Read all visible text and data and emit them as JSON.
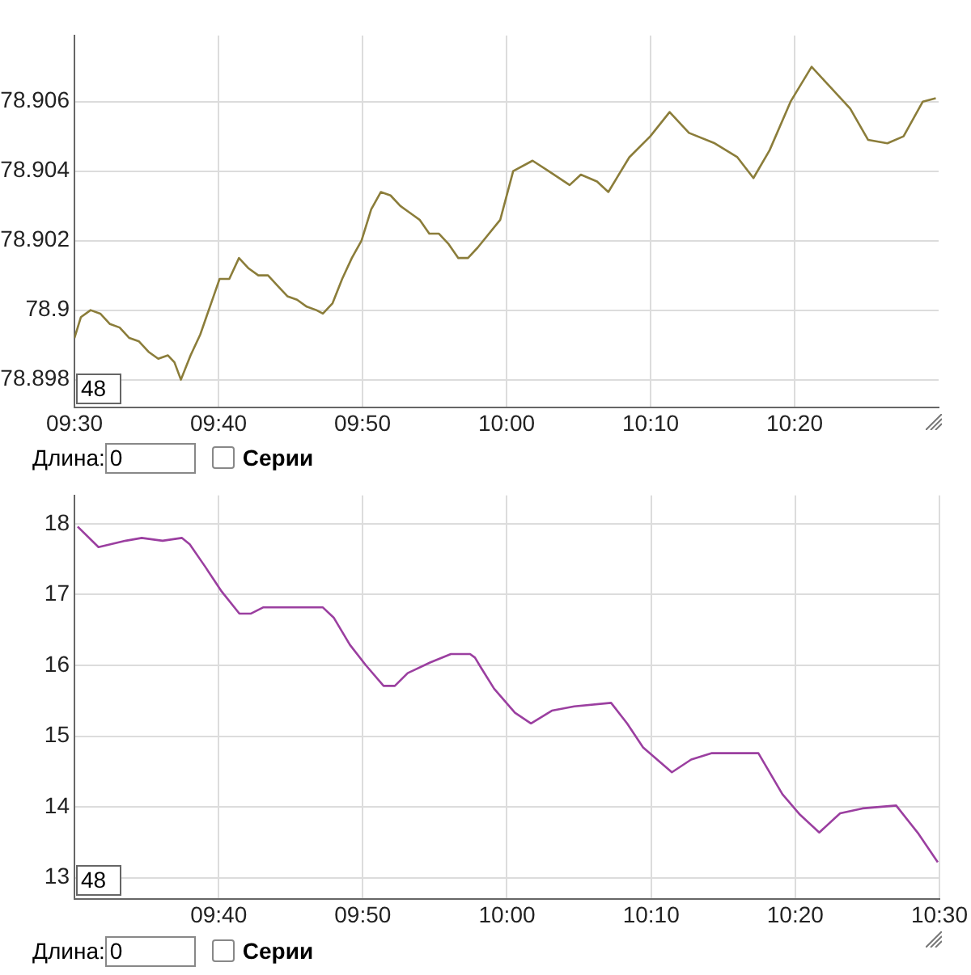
{
  "chart_data": [
    {
      "type": "line",
      "xlim": [
        9.5,
        10.5
      ],
      "ylim": [
        78.8972,
        78.9079
      ],
      "xticks": [
        {
          "value": 9.5,
          "label": "09:30"
        },
        {
          "value": 9.6667,
          "label": "09:40"
        },
        {
          "value": 9.8333,
          "label": "09:50"
        },
        {
          "value": 10,
          "label": "10:00"
        },
        {
          "value": 10.1667,
          "label": "10:10"
        },
        {
          "value": 10.3333,
          "label": "10:20"
        }
      ],
      "yticks": [
        78.898,
        78.9,
        78.902,
        78.904,
        78.906
      ],
      "grid": true,
      "legend": false,
      "marker": "none",
      "line_style": "solid",
      "annotations": [
        "48",
        "Длина:",
        "0",
        "Серии"
      ],
      "series": [
        {
          "color": "#8b7d3a",
          "x": [
            9.5,
            9.5075,
            9.5187,
            9.5299,
            9.5411,
            9.5523,
            9.5635,
            9.5747,
            9.5858,
            9.597,
            9.6082,
            9.6157,
            9.6232,
            9.6344,
            9.6456,
            9.6568,
            9.668,
            9.6792,
            9.6904,
            9.7016,
            9.7128,
            9.724,
            9.7352,
            9.7464,
            9.7576,
            9.7688,
            9.78,
            9.7875,
            9.7987,
            9.8098,
            9.821,
            9.8322,
            9.8434,
            9.8546,
            9.8658,
            9.877,
            9.8882,
            9.8994,
            9.9106,
            9.9218,
            9.933,
            9.9442,
            9.9554,
            9.9666,
            9.9927,
            10.0077,
            10.0301,
            10.0487,
            10.073,
            10.086,
            10.1047,
            10.1178,
            10.1421,
            10.1663,
            10.1887,
            10.2111,
            10.241,
            10.2671,
            10.2857,
            10.3044,
            10.3287,
            10.353,
            10.3716,
            10.3977,
            10.4183,
            10.4407,
            10.4594,
            10.4817,
            10.4967
          ],
          "values": [
            78.8992,
            78.8998,
            78.9,
            78.8999,
            78.8996,
            78.8995,
            78.8992,
            78.8991,
            78.8988,
            78.8986,
            78.8987,
            78.8985,
            78.898,
            78.8987,
            78.8993,
            78.9001,
            78.9009,
            78.9009,
            78.9015,
            78.9012,
            78.901,
            78.901,
            78.9007,
            78.9004,
            78.9003,
            78.9001,
            78.9,
            78.8999,
            78.9002,
            78.9009,
            78.9015,
            78.902,
            78.9029,
            78.9034,
            78.9033,
            78.903,
            78.9028,
            78.9026,
            78.9022,
            78.9022,
            78.9019,
            78.9015,
            78.9015,
            78.9018,
            78.9026,
            78.904,
            78.9043,
            78.904,
            78.9036,
            78.9039,
            78.9037,
            78.9034,
            78.9044,
            78.905,
            78.9057,
            78.9051,
            78.9048,
            78.9044,
            78.9038,
            78.9046,
            78.906,
            78.907,
            78.9065,
            78.9058,
            78.9049,
            78.9048,
            78.905,
            78.906,
            78.9061
          ]
        }
      ]
    },
    {
      "type": "line",
      "xlim": [
        9.5,
        10.5
      ],
      "ylim": [
        12.7,
        18.4
      ],
      "xticks": [
        {
          "value": 9.6667,
          "label": "09:40"
        },
        {
          "value": 9.8333,
          "label": "09:50"
        },
        {
          "value": 10,
          "label": "10:00"
        },
        {
          "value": 10.1667,
          "label": "10:10"
        },
        {
          "value": 10.3333,
          "label": "10:20"
        },
        {
          "value": 10.5,
          "label": "10:30"
        }
      ],
      "yticks": [
        13,
        14,
        15,
        16,
        17,
        18
      ],
      "grid": true,
      "legend": false,
      "marker": "none",
      "line_style": "solid",
      "annotations": [
        "48",
        "Длина:",
        "0",
        "Серии"
      ],
      "series": [
        {
          "color": "#9b3fa0",
          "x": [
            9.5037,
            9.5278,
            9.5593,
            9.5778,
            9.6019,
            9.6241,
            9.6333,
            9.6519,
            9.6704,
            9.6907,
            9.7037,
            9.7185,
            9.75,
            9.787,
            9.8,
            9.8185,
            9.837,
            9.8574,
            9.8704,
            9.8852,
            9.9111,
            9.9352,
            9.9574,
            9.963,
            9.9704,
            9.9852,
            10.0093,
            10.0278,
            10.0519,
            10.0778,
            10.1204,
            10.1389,
            10.1574,
            10.1907,
            10.213,
            10.237,
            10.2907,
            10.3185,
            10.3389,
            10.3611,
            10.3852,
            10.4111,
            10.45,
            10.4759,
            10.4981
          ],
          "values": [
            17.96,
            17.67,
            17.76,
            17.8,
            17.76,
            17.8,
            17.71,
            17.38,
            17.04,
            16.73,
            16.73,
            16.82,
            16.82,
            16.82,
            16.67,
            16.29,
            16.0,
            15.71,
            15.71,
            15.89,
            16.04,
            16.16,
            16.16,
            16.11,
            15.96,
            15.67,
            15.33,
            15.18,
            15.36,
            15.42,
            15.47,
            15.18,
            14.84,
            14.49,
            14.67,
            14.76,
            14.76,
            14.18,
            13.89,
            13.64,
            13.91,
            13.98,
            14.02,
            13.62,
            13.22
          ]
        }
      ]
    }
  ]
}
